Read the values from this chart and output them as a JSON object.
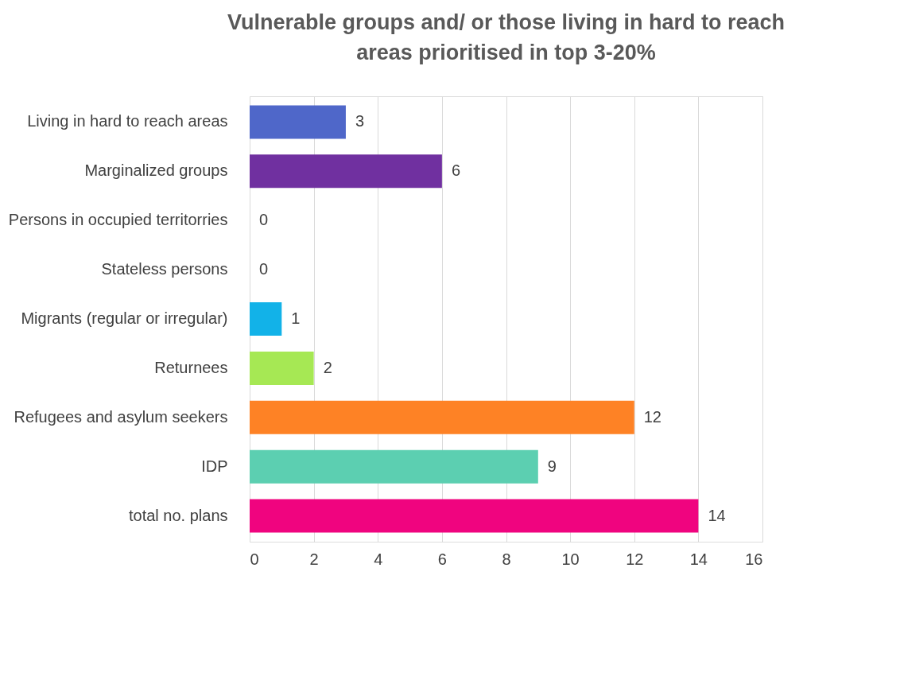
{
  "chart_data": {
    "type": "bar",
    "orientation": "horizontal",
    "title": "Vulnerable groups and/ or those living in hard to reach areas prioritised in top 3-20%",
    "categories": [
      "Living in hard to reach areas",
      "Marginalized groups",
      "Persons in occupied territorries",
      "Stateless persons",
      "Migrants (regular or irregular)",
      "Returnees",
      "Refugees and asylum seekers",
      "IDP",
      "total no. plans"
    ],
    "values": [
      3,
      6,
      0,
      0,
      1,
      2,
      12,
      9,
      14
    ],
    "colors": [
      "#4f67c9",
      "#7030a0",
      "#2e75b6",
      "#a5a5a5",
      "#12b2e8",
      "#a6e854",
      "#fe8225",
      "#5ccfb1",
      "#f0047f"
    ],
    "xlim": [
      0,
      16
    ],
    "xticks": [
      0,
      2,
      4,
      6,
      8,
      10,
      12,
      14,
      16
    ],
    "grid": "x",
    "data_labels": true
  }
}
